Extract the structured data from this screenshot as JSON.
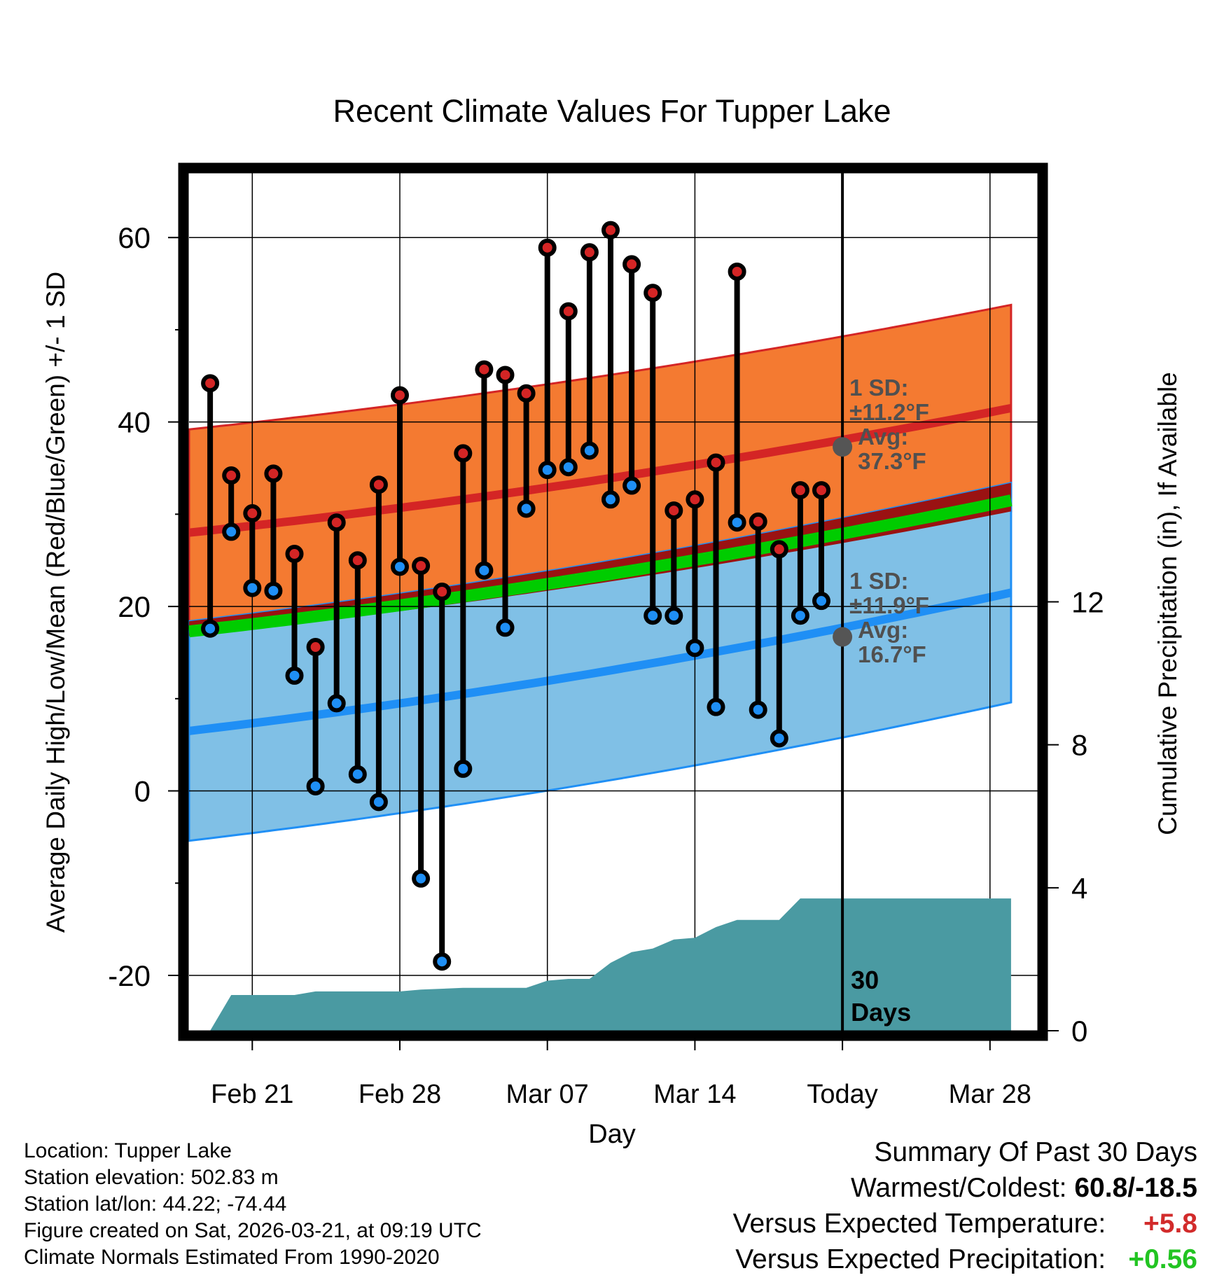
{
  "chart_data": {
    "type": "line",
    "title": "Recent Climate Values For Tupper Lake",
    "xlabel": "Day",
    "ylabel": "Average Daily High/Low/Mean (Red/Blue/Green) +/- 1 SD",
    "y2label": "Cumulative Precipitation (in), If Available",
    "ylim": [
      -26,
      67
    ],
    "y2lim": [
      0,
      24
    ],
    "yticks": [
      -20,
      0,
      20,
      40,
      60
    ],
    "y2ticks": [
      0,
      4,
      8,
      12
    ],
    "x_range_days": [
      0,
      39
    ],
    "x_tick_days": [
      3,
      10,
      17,
      24,
      31,
      38
    ],
    "xtick_labels": [
      "Feb 21",
      "Feb 28",
      "Mar 07",
      "Mar 14",
      "Today",
      "Mar 28"
    ],
    "today_day": 31,
    "today_label": [
      "30",
      "Days"
    ],
    "daily_high": [
      44.2,
      34.2,
      30.1,
      34.4,
      25.7,
      15.6,
      29.1,
      25.0,
      33.2,
      42.9,
      24.4,
      21.6,
      36.6,
      45.7,
      45.1,
      43.1,
      58.9,
      52.0,
      58.4,
      60.8,
      57.1,
      54.0,
      30.4,
      31.6,
      35.6,
      56.3,
      29.2,
      26.2,
      32.6,
      32.6
    ],
    "daily_low": [
      17.6,
      28.1,
      22.0,
      21.7,
      12.5,
      0.5,
      9.5,
      1.8,
      -1.2,
      24.3,
      -9.5,
      -18.5,
      2.4,
      23.9,
      17.7,
      30.6,
      34.8,
      35.1,
      36.9,
      31.6,
      33.1,
      19.0,
      19.0,
      15.5,
      9.1,
      29.1,
      8.8,
      5.7,
      19.0,
      20.6
    ],
    "normal_high_day0": 28.0,
    "normal_high_day39": 41.5,
    "normal_low_day0": 6.5,
    "normal_low_day39": 21.5,
    "high_sd_f": 11.2,
    "low_sd_f": 11.9,
    "high_annotation": [
      "1 SD:",
      "±11.2°F",
      "Avg:",
      "37.3°F"
    ],
    "low_annotation": [
      "1 SD:",
      "±11.9°F",
      "Avg:",
      "16.7°F"
    ],
    "annotation_avg_high": 37.3,
    "annotation_avg_low": 16.7,
    "normal_mean_day0": 17.3,
    "normal_mean_day39": 31.5,
    "cumulative_precip_x": [
      1,
      2,
      5,
      6,
      9,
      10,
      11,
      13,
      16,
      17,
      18,
      19,
      20,
      21,
      22,
      23,
      24,
      25,
      26,
      27,
      28,
      29,
      30,
      39
    ],
    "cumulative_precip_in": [
      0,
      1.0,
      1.0,
      1.1,
      1.1,
      1.1,
      1.15,
      1.2,
      1.2,
      1.4,
      1.45,
      1.45,
      1.9,
      2.2,
      2.3,
      2.55,
      2.6,
      2.9,
      3.1,
      3.1,
      3.1,
      3.7,
      3.7,
      3.7
    ],
    "colors": {
      "high_band": "#f47a31",
      "high_line": "#d42525",
      "low_band": "#80c0e6",
      "low_line": "#1f8ff5",
      "overlap_band": "#9a1212",
      "mean_line": "#00cc00",
      "precip": "#4a9aa2",
      "annotation_text": "#505050",
      "high_marker": "#d42525",
      "low_marker": "#1f8ff5"
    }
  },
  "footer_left": [
    "Location: Tupper Lake",
    "Station elevation: 502.83 m",
    "Station lat/lon: 44.22; -74.44",
    "Figure created on Sat, 2026-03-21, at 09:19 UTC",
    "Climate Normals Estimated From 1990-2020"
  ],
  "summary": {
    "title": "Summary Of Past 30 Days",
    "warmest_coldest_label": "Warmest/Coldest:",
    "warmest_coldest_value": "60.8/-18.5",
    "temp_label": "Versus Expected Temperature:",
    "temp_value": "+5.8",
    "precip_label": "Versus Expected Precipitation:",
    "precip_value": "+0.56"
  }
}
